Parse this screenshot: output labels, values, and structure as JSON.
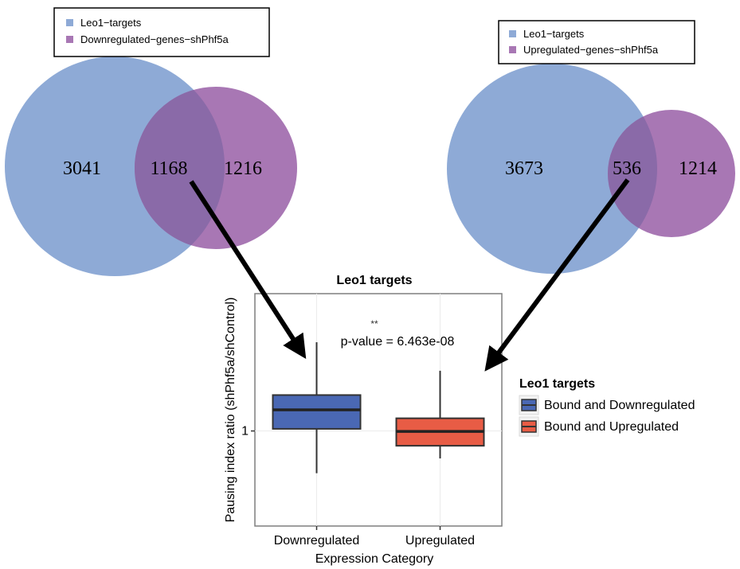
{
  "venn_left": {
    "legend": [
      "Leo1−targets",
      "Downregulated−genes−shPhf5a"
    ],
    "counts": {
      "left_only": "3041",
      "overlap": "1168",
      "right_only": "1216"
    }
  },
  "venn_right": {
    "legend": [
      "Leo1−targets",
      "Upregulated−genes−shPhf5a"
    ],
    "counts": {
      "left_only": "3673",
      "overlap": "536",
      "right_only": "1214"
    }
  },
  "colors": {
    "leo1_circle": "#8eaad6",
    "gene_circle": "#a877b4",
    "overlap": "#8a6aa8",
    "downregulated_box": "#4a68b4",
    "upregulated_box": "#e85c45",
    "arrow": "#000000",
    "panel_border": "#7f7f7f",
    "grid": "#ebebeb"
  },
  "chart_data": {
    "type": "box",
    "title": "Leo1 targets",
    "xlabel": "Expression Category",
    "ylabel": "Pausing index ratio (shPhf5a/shControl)",
    "categories": [
      "Downregulated",
      "Upregulated"
    ],
    "ylim": [
      0.55,
      1.65
    ],
    "yticks": [
      1
    ],
    "ytick_labels": [
      "1"
    ],
    "grid": true,
    "boxes": [
      {
        "category": "Downregulated",
        "min": 0.8,
        "q1": 1.01,
        "median": 1.1,
        "q3": 1.17,
        "max": 1.42,
        "color": "#4a68b4"
      },
      {
        "category": "Upregulated",
        "min": 0.87,
        "q1": 0.93,
        "median": 0.998,
        "q3": 1.06,
        "max": 1.285,
        "color": "#e85c45"
      }
    ],
    "annotation": {
      "stars": "**",
      "text": "p-value = 6.463e-08"
    },
    "legend": {
      "title": "Leo1 targets",
      "position": "right",
      "entries": [
        {
          "name": "Bound and Downregulated",
          "color": "#4a68b4"
        },
        {
          "name": "Bound and Upregulated",
          "color": "#e85c45"
        }
      ]
    }
  }
}
